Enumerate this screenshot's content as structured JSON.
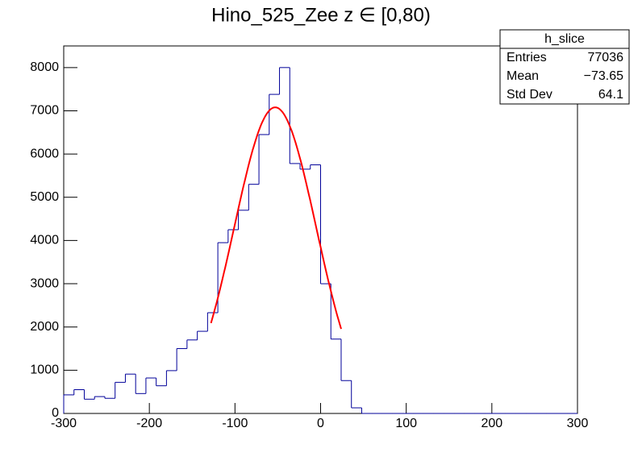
{
  "chart_data": {
    "type": "histogram",
    "title": "Hino_525_Zee z  ∈ [0,80)",
    "bins": [
      -300,
      -288,
      -276,
      -264,
      -252,
      -240,
      -228,
      -216,
      -204,
      -192,
      -180,
      -168,
      -156,
      -144,
      -132,
      -120,
      -108,
      -96,
      -84,
      -72,
      -60,
      -48,
      -36,
      -24,
      -12,
      0,
      12,
      24,
      36,
      48,
      60,
      72,
      84,
      96,
      108,
      120,
      132,
      144,
      156,
      168,
      180,
      192,
      204,
      216,
      228,
      240,
      252,
      264,
      276,
      288,
      300
    ],
    "values": [
      430,
      550,
      330,
      390,
      350,
      720,
      910,
      460,
      820,
      640,
      990,
      1500,
      1700,
      1900,
      2330,
      3950,
      4250,
      4700,
      5300,
      6450,
      7380,
      8000,
      5780,
      5650,
      5750,
      3000,
      1720,
      760,
      130,
      0,
      0,
      0,
      0,
      0,
      0,
      0,
      0,
      0,
      0,
      0,
      0,
      0,
      0,
      0,
      0,
      0,
      0,
      0,
      0,
      0
    ],
    "color": "#000099",
    "fit": {
      "constant": 7080,
      "mean": -53,
      "sigma": 48,
      "range": [
        -128,
        24
      ],
      "color": "#ff0000"
    },
    "xlim": [
      -300,
      300
    ],
    "xticks": [
      -300,
      -200,
      -100,
      0,
      100,
      200,
      300
    ],
    "ylim": [
      0,
      8500
    ],
    "yticks": [
      0,
      1000,
      2000,
      3000,
      4000,
      5000,
      6000,
      7000,
      8000
    ],
    "stats": {
      "name": "h_slice",
      "rows": [
        [
          "Entries",
          "77036"
        ],
        [
          "Mean",
          "−73.65"
        ],
        [
          "Std Dev",
          "64.1"
        ]
      ]
    }
  }
}
